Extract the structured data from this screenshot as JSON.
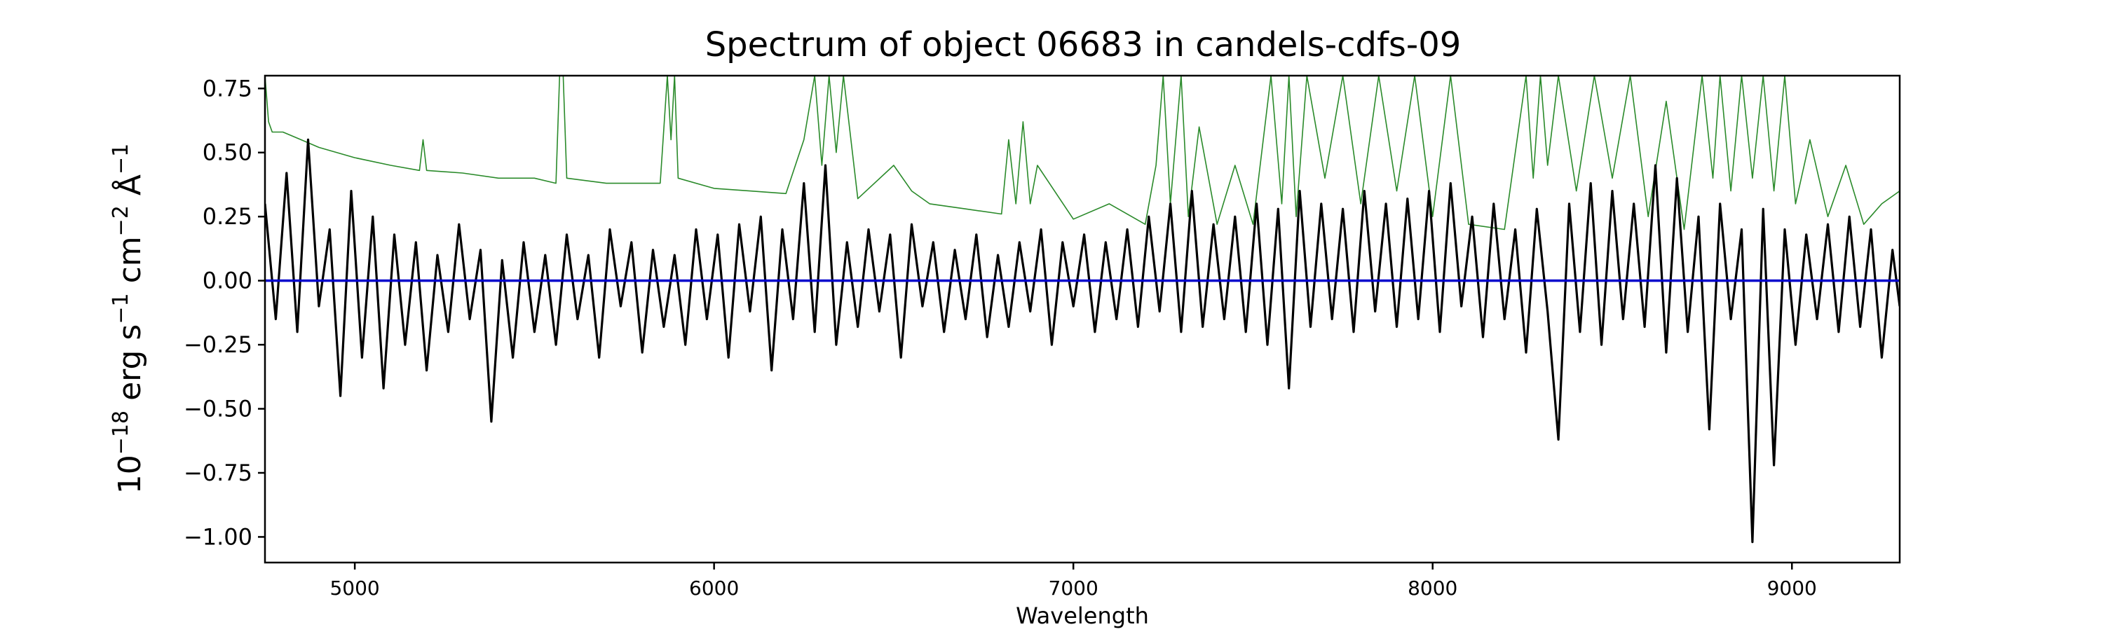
{
  "chart_data": {
    "type": "line",
    "title": "Spectrum of object 06683 in candels-cdfs-09",
    "xlabel": "Wavelength",
    "ylabel": {
      "base": "10",
      "exponent": "−18",
      "erg": " erg s",
      "s_exp": "−1",
      "cm": " cm",
      "cm_exp": "−2",
      "ang": " Å",
      "ang_exp": "−1"
    },
    "xlim": [
      4750,
      9300
    ],
    "ylim": [
      -1.1,
      0.8
    ],
    "x_ticks": [
      5000,
      6000,
      7000,
      8000,
      9000
    ],
    "x_tick_labels": [
      "5000",
      "6000",
      "7000",
      "8000",
      "9000"
    ],
    "y_ticks": [
      0.75,
      0.5,
      0.25,
      0.0,
      -0.25,
      -0.5,
      -0.75,
      -1.0
    ],
    "y_tick_labels": [
      "0.75",
      "0.50",
      "0.25",
      "0.00",
      "−0.25",
      "−0.50",
      "−0.75",
      "−1.00"
    ],
    "grid": false,
    "colors": {
      "flux": "#000000",
      "error": "#2a8a2a",
      "zero": "#0000cc"
    },
    "series": [
      {
        "key": "flux",
        "x": [
          4750,
          4780,
          4810,
          4840,
          4870,
          4900,
          4930,
          4960,
          4990,
          5020,
          5050,
          5080,
          5110,
          5140,
          5170,
          5200,
          5230,
          5260,
          5290,
          5320,
          5350,
          5380,
          5410,
          5440,
          5470,
          5500,
          5530,
          5560,
          5590,
          5620,
          5650,
          5680,
          5710,
          5740,
          5770,
          5800,
          5830,
          5860,
          5890,
          5920,
          5950,
          5980,
          6010,
          6040,
          6070,
          6100,
          6130,
          6160,
          6190,
          6220,
          6250,
          6280,
          6310,
          6340,
          6370,
          6400,
          6430,
          6460,
          6490,
          6520,
          6550,
          6580,
          6610,
          6640,
          6670,
          6700,
          6730,
          6760,
          6790,
          6820,
          6850,
          6880,
          6910,
          6940,
          6970,
          7000,
          7030,
          7060,
          7090,
          7120,
          7150,
          7180,
          7210,
          7240,
          7270,
          7300,
          7330,
          7360,
          7390,
          7420,
          7450,
          7480,
          7510,
          7540,
          7570,
          7600,
          7630,
          7660,
          7690,
          7720,
          7750,
          7780,
          7810,
          7840,
          7870,
          7900,
          7930,
          7960,
          7990,
          8020,
          8050,
          8080,
          8110,
          8140,
          8170,
          8200,
          8230,
          8260,
          8290,
          8320,
          8350,
          8380,
          8410,
          8440,
          8470,
          8500,
          8530,
          8560,
          8590,
          8620,
          8650,
          8680,
          8710,
          8740,
          8770,
          8800,
          8830,
          8860,
          8890,
          8920,
          8950,
          8980,
          9010,
          9040,
          9070,
          9100,
          9130,
          9160,
          9190,
          9220,
          9250,
          9280,
          9300
        ],
        "y": [
          0.3,
          -0.15,
          0.42,
          -0.2,
          0.55,
          -0.1,
          0.2,
          -0.45,
          0.35,
          -0.3,
          0.25,
          -0.42,
          0.18,
          -0.25,
          0.15,
          -0.35,
          0.1,
          -0.2,
          0.22,
          -0.15,
          0.12,
          -0.55,
          0.08,
          -0.3,
          0.15,
          -0.2,
          0.1,
          -0.25,
          0.18,
          -0.15,
          0.1,
          -0.3,
          0.2,
          -0.1,
          0.15,
          -0.28,
          0.12,
          -0.18,
          0.1,
          -0.25,
          0.2,
          -0.15,
          0.18,
          -0.3,
          0.22,
          -0.12,
          0.25,
          -0.35,
          0.2,
          -0.15,
          0.38,
          -0.2,
          0.45,
          -0.25,
          0.15,
          -0.18,
          0.2,
          -0.12,
          0.18,
          -0.3,
          0.22,
          -0.1,
          0.15,
          -0.2,
          0.12,
          -0.15,
          0.18,
          -0.22,
          0.1,
          -0.18,
          0.15,
          -0.12,
          0.2,
          -0.25,
          0.15,
          -0.1,
          0.18,
          -0.2,
          0.15,
          -0.15,
          0.2,
          -0.18,
          0.25,
          -0.12,
          0.3,
          -0.2,
          0.35,
          -0.18,
          0.22,
          -0.15,
          0.25,
          -0.2,
          0.3,
          -0.25,
          0.28,
          -0.42,
          0.35,
          -0.18,
          0.3,
          -0.15,
          0.28,
          -0.2,
          0.35,
          -0.12,
          0.3,
          -0.18,
          0.32,
          -0.15,
          0.35,
          -0.2,
          0.38,
          -0.1,
          0.25,
          -0.22,
          0.3,
          -0.15,
          0.2,
          -0.28,
          0.28,
          -0.12,
          -0.62,
          0.3,
          -0.2,
          0.38,
          -0.25,
          0.35,
          -0.15,
          0.3,
          -0.18,
          0.45,
          -0.28,
          0.4,
          -0.2,
          0.25,
          -0.58,
          0.3,
          -0.15,
          0.2,
          -1.02,
          0.28,
          -0.72,
          0.2,
          -0.25,
          0.18,
          -0.15,
          0.22,
          -0.2,
          0.25,
          -0.18,
          0.2,
          -0.3,
          0.12,
          -0.1
        ]
      },
      {
        "key": "error",
        "x": [
          4750,
          4760,
          4770,
          4800,
          4850,
          4900,
          5000,
          5100,
          5180,
          5190,
          5200,
          5300,
          5400,
          5500,
          5560,
          5570,
          5580,
          5590,
          5700,
          5850,
          5870,
          5880,
          5890,
          5900,
          6000,
          6100,
          6200,
          6250,
          6280,
          6300,
          6320,
          6340,
          6360,
          6400,
          6500,
          6550,
          6600,
          6700,
          6800,
          6820,
          6840,
          6860,
          6880,
          6900,
          7000,
          7100,
          7200,
          7230,
          7250,
          7270,
          7300,
          7320,
          7350,
          7400,
          7450,
          7500,
          7550,
          7580,
          7600,
          7620,
          7650,
          7700,
          7750,
          7800,
          7850,
          7900,
          7950,
          8000,
          8050,
          8100,
          8200,
          8260,
          8280,
          8300,
          8320,
          8350,
          8400,
          8450,
          8500,
          8550,
          8600,
          8650,
          8700,
          8750,
          8780,
          8800,
          8830,
          8860,
          8890,
          8920,
          8950,
          8980,
          9010,
          9050,
          9100,
          9150,
          9200,
          9250,
          9300
        ],
        "y": [
          0.8,
          0.62,
          0.58,
          0.58,
          0.55,
          0.52,
          0.48,
          0.45,
          0.43,
          0.55,
          0.43,
          0.42,
          0.4,
          0.4,
          0.38,
          0.8,
          0.8,
          0.4,
          0.38,
          0.38,
          0.8,
          0.55,
          0.8,
          0.4,
          0.36,
          0.35,
          0.34,
          0.55,
          0.8,
          0.45,
          0.8,
          0.5,
          0.8,
          0.32,
          0.45,
          0.35,
          0.3,
          0.28,
          0.26,
          0.55,
          0.3,
          0.62,
          0.3,
          0.45,
          0.24,
          0.3,
          0.22,
          0.45,
          0.8,
          0.3,
          0.8,
          0.25,
          0.6,
          0.22,
          0.45,
          0.22,
          0.8,
          0.3,
          0.8,
          0.25,
          0.8,
          0.4,
          0.8,
          0.3,
          0.8,
          0.35,
          0.8,
          0.25,
          0.8,
          0.22,
          0.2,
          0.8,
          0.4,
          0.8,
          0.45,
          0.8,
          0.35,
          0.8,
          0.4,
          0.8,
          0.25,
          0.7,
          0.2,
          0.8,
          0.4,
          0.8,
          0.35,
          0.8,
          0.4,
          0.8,
          0.35,
          0.8,
          0.3,
          0.55,
          0.25,
          0.45,
          0.22,
          0.3,
          0.35
        ]
      },
      {
        "key": "zero",
        "x": [
          4750,
          9300
        ],
        "y": [
          0.0,
          0.0
        ]
      }
    ]
  }
}
